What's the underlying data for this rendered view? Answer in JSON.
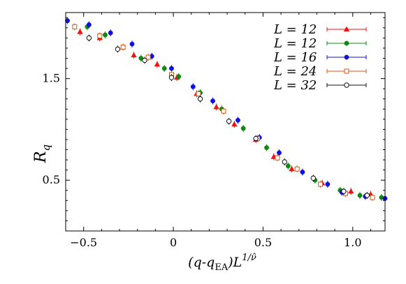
{
  "chart_data": {
    "type": "scatter",
    "xlabel": "(q-q_EA)L^{1/ν̂}",
    "ylabel": "R_q",
    "xlim": [
      -0.6,
      1.18
    ],
    "ylim": [
      0.0,
      2.15
    ],
    "xticks": [
      {
        "value": -0.5,
        "label": "−0.5"
      },
      {
        "value": 0,
        "label": "0"
      },
      {
        "value": 0.5,
        "label": "0.5"
      },
      {
        "value": 1.0,
        "label": "1.0"
      }
    ],
    "yticks": [
      {
        "value": 0.5,
        "label": "0.5"
      },
      {
        "value": 1.5,
        "label": "1.5"
      }
    ],
    "legend_position": "top-right",
    "series": [
      {
        "name": "L = 12",
        "color": "#ee1111",
        "marker": "triangle",
        "points": [
          [
            -0.52,
            1.96
          ],
          [
            -0.41,
            1.9
          ],
          [
            -0.22,
            1.73
          ],
          [
            -0.09,
            1.64
          ],
          [
            0.02,
            1.51
          ],
          [
            0.13,
            1.35
          ],
          [
            0.24,
            1.22
          ],
          [
            0.34,
            1.05
          ],
          [
            0.46,
            0.9
          ],
          [
            0.56,
            0.73
          ],
          [
            0.66,
            0.61
          ],
          [
            0.83,
            0.47
          ],
          [
            0.99,
            0.39
          ],
          [
            1.1,
            0.36
          ]
        ]
      },
      {
        "name": "L = 12",
        "color": "#118811",
        "marker": "circle-filled",
        "points": [
          [
            -0.48,
            2.01
          ],
          [
            -0.38,
            1.93
          ],
          [
            -0.18,
            1.7
          ],
          [
            -0.05,
            1.6
          ],
          [
            0.03,
            1.52
          ],
          [
            0.15,
            1.36
          ],
          [
            0.27,
            1.2
          ],
          [
            0.39,
            1.01
          ],
          [
            0.52,
            0.82
          ],
          [
            0.64,
            0.64
          ],
          [
            0.79,
            0.5
          ],
          [
            0.93,
            0.4
          ],
          [
            1.04,
            0.35
          ],
          [
            1.16,
            0.33
          ]
        ]
      },
      {
        "name": "L = 16",
        "color": "#1111dd",
        "marker": "circle-filled",
        "points": [
          [
            -0.59,
            2.07
          ],
          [
            -0.47,
            2.03
          ],
          [
            -0.35,
            1.95
          ],
          [
            -0.23,
            1.84
          ],
          [
            -0.12,
            1.72
          ],
          [
            -0.01,
            1.6
          ],
          [
            0.11,
            1.42
          ],
          [
            0.22,
            1.28
          ],
          [
            0.36,
            1.09
          ],
          [
            0.48,
            0.92
          ],
          [
            0.59,
            0.77
          ],
          [
            0.72,
            0.58
          ],
          [
            0.86,
            0.46
          ],
          [
            0.94,
            0.38
          ],
          [
            1.07,
            0.34
          ],
          [
            1.18,
            0.32
          ]
        ]
      },
      {
        "name": "L = 24",
        "color": "#dd5511",
        "marker": "square-open",
        "points": [
          [
            -0.55,
            2.01
          ],
          [
            -0.41,
            1.92
          ],
          [
            -0.28,
            1.81
          ],
          [
            -0.14,
            1.71
          ],
          [
            -0.01,
            1.54
          ],
          [
            0.14,
            1.35
          ],
          [
            0.28,
            1.18
          ],
          [
            0.47,
            0.91
          ],
          [
            0.58,
            0.72
          ],
          [
            0.69,
            0.61
          ],
          [
            0.82,
            0.46
          ],
          [
            0.96,
            0.37
          ],
          [
            1.11,
            0.33
          ]
        ]
      },
      {
        "name": "L = 32",
        "color": "#111111",
        "marker": "circle-open",
        "points": [
          [
            -0.47,
            1.9
          ],
          [
            -0.31,
            1.79
          ],
          [
            -0.16,
            1.68
          ],
          [
            -0.01,
            1.51
          ],
          [
            0.15,
            1.3
          ],
          [
            0.31,
            1.08
          ],
          [
            0.46,
            0.91
          ],
          [
            0.62,
            0.68
          ],
          [
            0.78,
            0.52
          ],
          [
            0.95,
            0.39
          ],
          [
            1.08,
            0.35
          ]
        ]
      }
    ]
  }
}
